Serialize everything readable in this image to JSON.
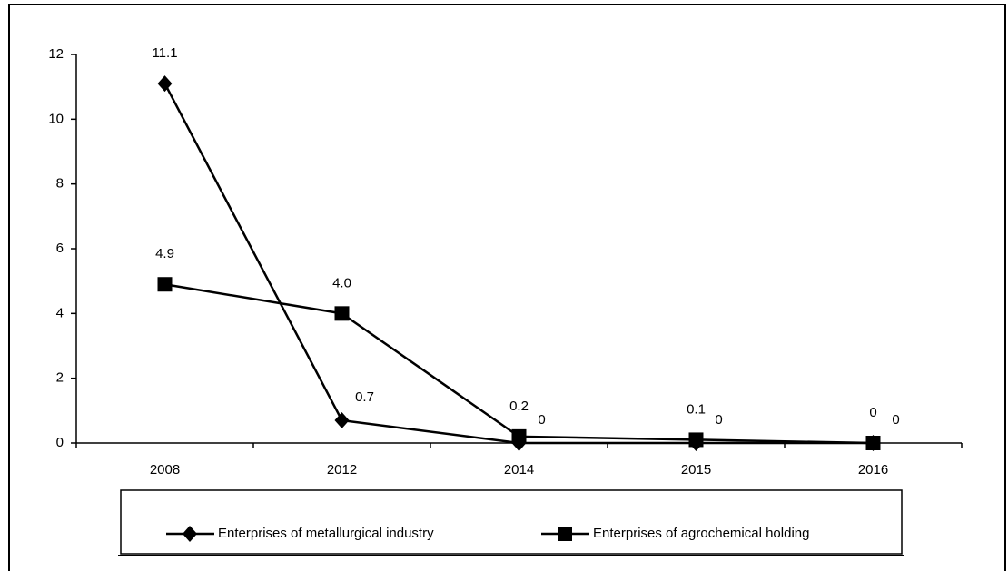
{
  "chart_data": {
    "type": "line",
    "categories": [
      "2008",
      "2012",
      "2014",
      "2015",
      "2016"
    ],
    "series": [
      {
        "name": "Enterprises of metallurgical industry",
        "color": "#000000",
        "marker": "diamond",
        "values": [
          11.1,
          0.7,
          0,
          0,
          0
        ],
        "value_labels": [
          "11.1",
          "0.7",
          "0",
          "0",
          "0"
        ]
      },
      {
        "name": "Enterprises of agrochemical holding",
        "color": "#000000",
        "marker": "square",
        "values": [
          4.9,
          4.0,
          0.2,
          0.1,
          0
        ],
        "value_labels": [
          "4.9",
          "4.0",
          "0.2",
          "0.1",
          "0"
        ]
      }
    ],
    "ylim": [
      0,
      12
    ],
    "yticks": [
      0,
      2,
      4,
      6,
      8,
      10,
      12
    ],
    "grid": false,
    "legend": "bottom"
  }
}
